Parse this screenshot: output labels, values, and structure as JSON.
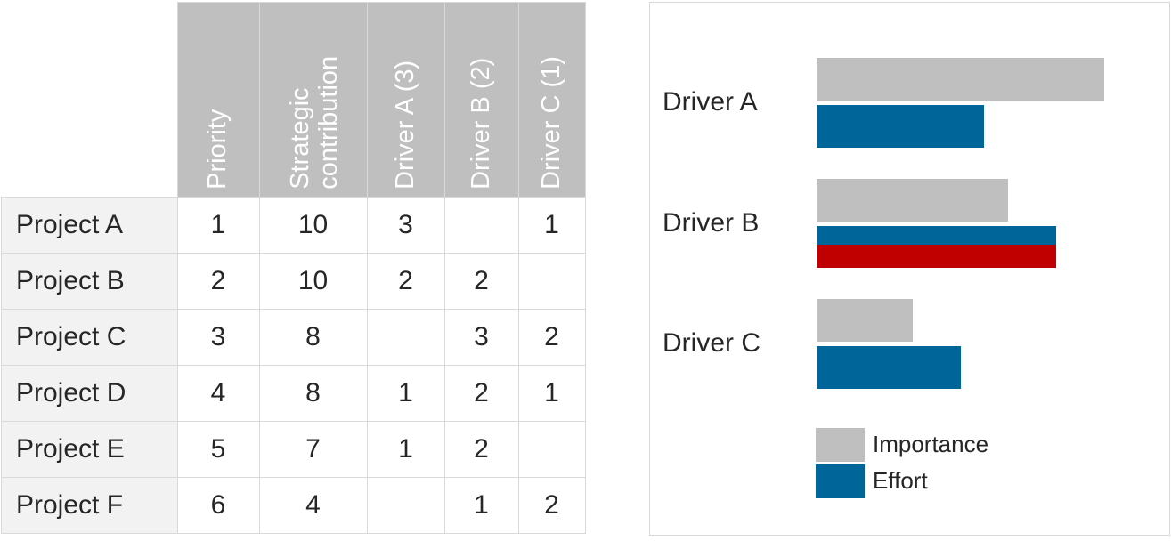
{
  "table": {
    "headers": [
      "Priority",
      "Strategic\ncontribution",
      "Driver A (3)",
      "Driver B (2)",
      "Driver C (1)"
    ],
    "rows": [
      {
        "label": "Project A",
        "cells": [
          "1",
          "10",
          "3",
          "",
          "1"
        ]
      },
      {
        "label": "Project B",
        "cells": [
          "2",
          "10",
          "2",
          "2",
          ""
        ]
      },
      {
        "label": "Project C",
        "cells": [
          "3",
          "8",
          "",
          "3",
          "2"
        ]
      },
      {
        "label": "Project D",
        "cells": [
          "4",
          "8",
          "1",
          "2",
          "1"
        ]
      },
      {
        "label": "Project E",
        "cells": [
          "5",
          "7",
          "1",
          "2",
          ""
        ]
      },
      {
        "label": "Project F",
        "cells": [
          "6",
          "4",
          "",
          "1",
          "2"
        ]
      }
    ]
  },
  "chart_data": {
    "type": "bar",
    "orientation": "horizontal",
    "categories": [
      "Driver A",
      "Driver B",
      "Driver C"
    ],
    "series": [
      {
        "name": "Importance",
        "values": [
          3,
          2,
          1
        ],
        "color": "#bfbfbf",
        "xlim": [
          0,
          3
        ]
      },
      {
        "name": "Effort",
        "values": [
          7,
          10,
          6
        ],
        "color": "#006699",
        "xlim": [
          0,
          12
        ]
      }
    ],
    "highlight": {
      "category": "Driver B",
      "color": "#c00000"
    },
    "legend": [
      "Importance",
      "Effort"
    ],
    "legend_position": "bottom"
  }
}
